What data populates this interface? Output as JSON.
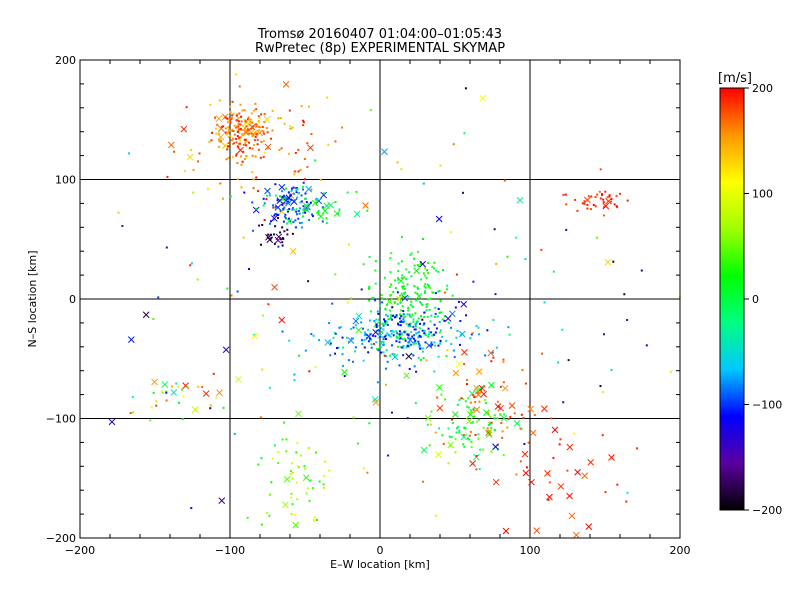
{
  "chart_data": {
    "type": "scatter",
    "title": "Tromsø 20160407 01:04:00–01:05:43",
    "subtitle": "RwPretec (8p) EXPERIMENTAL SKYMAP",
    "xlabel": "E–W location [km]",
    "ylabel": "N–S location [km]",
    "xlim": [
      -200,
      200
    ],
    "ylim": [
      -200,
      200
    ],
    "xticks": [
      "−200",
      "−100",
      "0",
      "100",
      "200"
    ],
    "yticks": [
      "−200",
      "−100",
      "0",
      "100",
      "200"
    ],
    "grid": true,
    "grid_lines_x": [
      -100,
      0,
      100
    ],
    "grid_lines_y": [
      -100,
      0,
      100
    ],
    "colorbar": {
      "label": "[m/s]",
      "min": -200,
      "max": 200,
      "ticks": [
        "200",
        "100",
        "0",
        "−100",
        "−200"
      ],
      "colormap": [
        "#000000",
        "#5a00a0",
        "#0000ff",
        "#00c8ff",
        "#00ff80",
        "#00ff00",
        "#a0ff00",
        "#ffff00",
        "#ff9600",
        "#ff0000"
      ]
    },
    "clusters": [
      {
        "cx": -92,
        "cy": 140,
        "sx": 10,
        "sy": 10,
        "n": 180,
        "vmin": 130,
        "vmax": 200,
        "cross": 0.08
      },
      {
        "cx": -80,
        "cy": 125,
        "sx": 28,
        "sy": 28,
        "n": 90,
        "vmin": 120,
        "vmax": 200,
        "cross": 0.05
      },
      {
        "cx": -62,
        "cy": 80,
        "sx": 10,
        "sy": 9,
        "n": 110,
        "vmin": -120,
        "vmax": -70,
        "cross": 0.15
      },
      {
        "cx": -45,
        "cy": 75,
        "sx": 18,
        "sy": 10,
        "n": 40,
        "vmin": -30,
        "vmax": 30,
        "cross": 0.2
      },
      {
        "cx": -68,
        "cy": 55,
        "sx": 8,
        "sy": 6,
        "n": 25,
        "vmin": -200,
        "vmax": -170,
        "cross": 0.1
      },
      {
        "cx": 18,
        "cy": 0,
        "sx": 13,
        "sy": 22,
        "n": 200,
        "vmin": -10,
        "vmax": 40,
        "cross": 0.03
      },
      {
        "cx": 10,
        "cy": -32,
        "sx": 25,
        "sy": 12,
        "n": 170,
        "vmin": -90,
        "vmax": -30,
        "cross": 0.06
      },
      {
        "cx": 20,
        "cy": -30,
        "sx": 20,
        "sy": 12,
        "n": 100,
        "vmin": -130,
        "vmax": -90,
        "cross": 0.05
      },
      {
        "cx": 60,
        "cy": -105,
        "sx": 12,
        "sy": 14,
        "n": 90,
        "vmin": -30,
        "vmax": 60,
        "cross": 0.2
      },
      {
        "cx": 72,
        "cy": -90,
        "sx": 18,
        "sy": 22,
        "n": 70,
        "vmin": 150,
        "vmax": 200,
        "cross": 0.25
      },
      {
        "cx": -55,
        "cy": -150,
        "sx": 10,
        "sy": 22,
        "n": 55,
        "vmin": 0,
        "vmax": 110,
        "cross": 0.05
      },
      {
        "cx": 145,
        "cy": 82,
        "sx": 12,
        "sy": 6,
        "n": 40,
        "vmin": 170,
        "vmax": 200,
        "cross": 0.05
      },
      {
        "cx": 125,
        "cy": -150,
        "sx": 22,
        "sy": 28,
        "n": 35,
        "vmin": 170,
        "vmax": 200,
        "cross": 0.5
      },
      {
        "cx": -135,
        "cy": -80,
        "sx": 18,
        "sy": 10,
        "n": 30,
        "vmin": -60,
        "vmax": 200,
        "cross": 0.3
      },
      {
        "cx": 0,
        "cy": 0,
        "sx": 95,
        "sy": 95,
        "n": 160,
        "vmin": -200,
        "vmax": 200,
        "cross": 0.25
      }
    ]
  }
}
